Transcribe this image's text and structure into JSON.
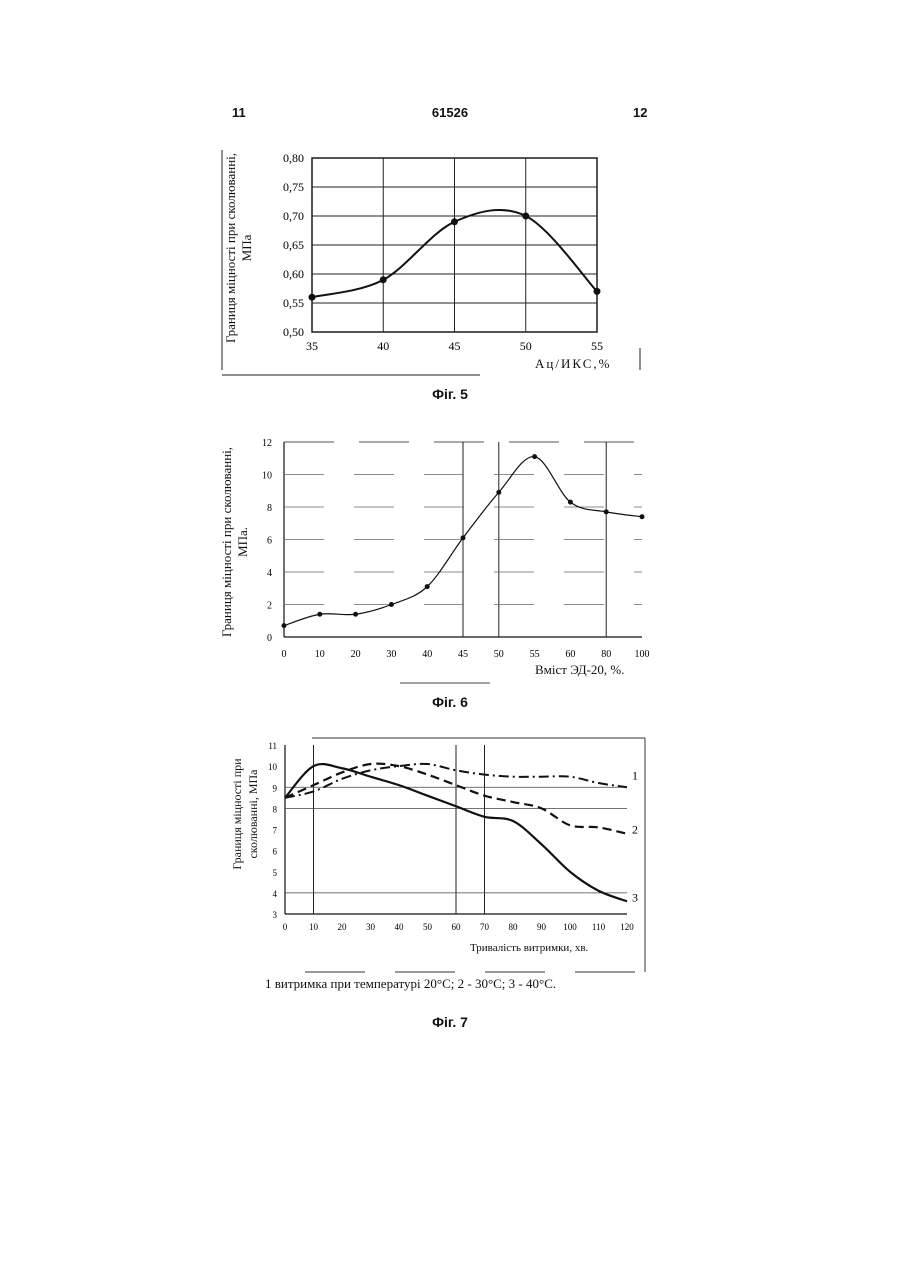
{
  "header": {
    "left": "11",
    "center": "61526",
    "right": "12"
  },
  "chart_data": [
    {
      "type": "line",
      "caption": "Фіг. 5",
      "xlabel": "Ац/ИКС,%",
      "ylabel": "Границя міцності при сколюванні, МПа",
      "x": [
        35,
        40,
        45,
        50,
        55
      ],
      "xticks": [
        "35",
        "40",
        "45",
        "50",
        "55"
      ],
      "yticks": [
        "0,50",
        "0,55",
        "0,60",
        "0,65",
        "0,70",
        "0,75",
        "0,80"
      ],
      "xlim": [
        35,
        55
      ],
      "ylim": [
        0.5,
        0.8
      ],
      "series": [
        {
          "values": [
            0.56,
            0.59,
            0.69,
            0.7,
            0.57
          ]
        }
      ]
    },
    {
      "type": "line",
      "caption": "Фіг. 6",
      "xlabel": "Вміст ЭД-20, %.",
      "ylabel": "Границя міцності при сколюванні, МПа.",
      "categories": [
        "0",
        "10",
        "20",
        "30",
        "40",
        "45",
        "50",
        "55",
        "60",
        "80",
        "100"
      ],
      "yticks": [
        "0",
        "2",
        "4",
        "6",
        "8",
        "10",
        "12"
      ],
      "ylim": [
        0,
        12
      ],
      "series": [
        {
          "values": [
            0.7,
            1.4,
            1.4,
            2.0,
            3.1,
            6.1,
            8.9,
            11.1,
            8.3,
            7.7,
            7.4
          ]
        }
      ]
    },
    {
      "type": "line",
      "caption": "Фіг. 7",
      "xlabel": "Тривалість витримки, хв.",
      "ylabel": "Границя міцності при сколюванні, МПа",
      "x": [
        0,
        10,
        20,
        30,
        40,
        50,
        60,
        70,
        80,
        90,
        100,
        110,
        120
      ],
      "xticks": [
        "0",
        "10",
        "20",
        "30",
        "40",
        "50",
        "60",
        "70",
        "80",
        "90",
        "100",
        "110",
        "120"
      ],
      "yticks": [
        "3",
        "4",
        "5",
        "6",
        "7",
        "8",
        "9",
        "10",
        "11"
      ],
      "xlim": [
        0,
        120
      ],
      "ylim": [
        3,
        11
      ],
      "series": [
        {
          "name": "1",
          "style": "dash-dot",
          "values": [
            8.5,
            8.8,
            9.4,
            9.8,
            10.0,
            10.1,
            9.8,
            9.6,
            9.5,
            9.5,
            9.5,
            9.2,
            9.0
          ]
        },
        {
          "name": "2",
          "style": "dashed",
          "values": [
            8.5,
            9.1,
            9.7,
            10.1,
            10.0,
            9.6,
            9.1,
            8.6,
            8.3,
            8.0,
            7.2,
            7.1,
            6.8
          ]
        },
        {
          "name": "3",
          "style": "solid",
          "values": [
            8.5,
            10.0,
            9.9,
            9.5,
            9.1,
            8.6,
            8.1,
            7.6,
            7.4,
            6.3,
            5.0,
            4.1,
            3.6
          ]
        }
      ],
      "note": "1   витримка при температурі 20°С; 2 - 30°С; 3 - 40°С."
    }
  ]
}
